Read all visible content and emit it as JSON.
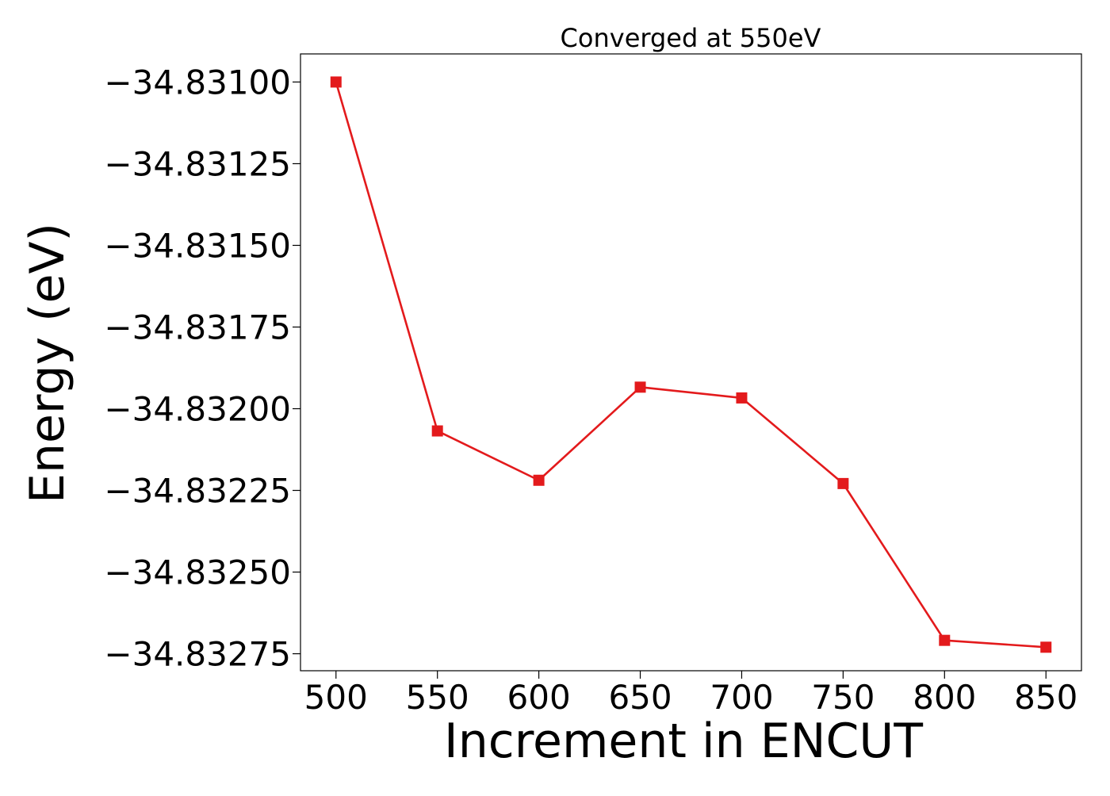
{
  "chart_data": {
    "type": "line",
    "title": "Converged at 550eV",
    "xlabel": "Increment in ENCUT",
    "ylabel": "Energy (eV)",
    "x": [
      500,
      550,
      600,
      650,
      700,
      750,
      800,
      850
    ],
    "series": [
      {
        "values": [
          -34.831,
          -34.832068,
          -34.832219,
          -34.831934,
          -34.831967,
          -34.832229,
          -34.832709,
          -34.83273
        ],
        "color": "#e31a1c",
        "marker": "square"
      }
    ],
    "xticks": [
      500,
      550,
      600,
      650,
      700,
      750,
      800,
      850
    ],
    "xtick_labels": [
      "500",
      "550",
      "600",
      "650",
      "700",
      "750",
      "800",
      "850"
    ],
    "yticks": [
      -34.831,
      -34.83125,
      -34.8315,
      -34.83175,
      -34.832,
      -34.83225,
      -34.8325,
      -34.83275
    ],
    "ytick_labels": [
      "−34.83100",
      "−34.83125",
      "−34.83150",
      "−34.83175",
      "−34.83200",
      "−34.83225",
      "−34.83250",
      "−34.83275"
    ],
    "xlim": [
      482.5,
      867.5
    ],
    "ylim": [
      -34.832802,
      -34.830914
    ],
    "grid": false,
    "legend": "none"
  }
}
